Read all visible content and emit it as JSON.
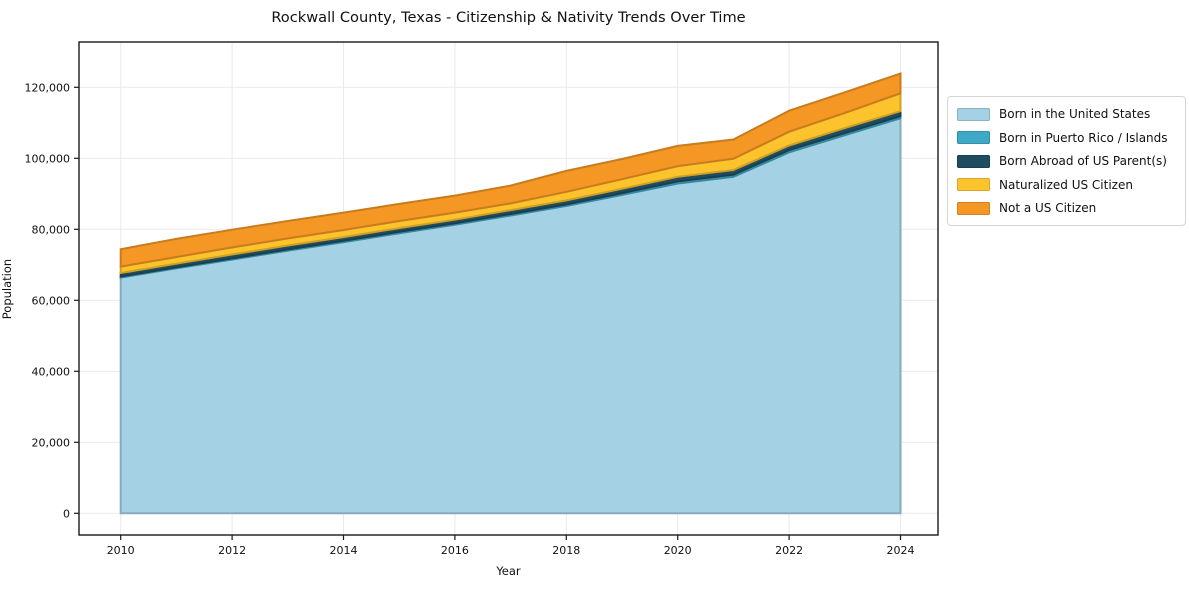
{
  "title": "Rockwall County, Texas - Citizenship & Nativity Trends Over Time",
  "chart_data": {
    "type": "area",
    "stacked": true,
    "title": "Rockwall County, Texas - Citizenship & Nativity Trends Over Time",
    "xlabel": "Year",
    "ylabel": "Population",
    "grid": true,
    "legend_position": "right of plot",
    "x": [
      2010,
      2011,
      2012,
      2013,
      2014,
      2015,
      2016,
      2017,
      2018,
      2019,
      2020,
      2021,
      2022,
      2023,
      2024
    ],
    "x_tick_labels": [
      "2010",
      "2012",
      "2014",
      "2016",
      "2018",
      "2020",
      "2022",
      "2024"
    ],
    "x_ticks": [
      2010,
      2012,
      2014,
      2016,
      2018,
      2020,
      2022,
      2024
    ],
    "y_ticks": [
      0,
      20000,
      40000,
      60000,
      80000,
      100000,
      120000
    ],
    "y_tick_labels": [
      "0",
      "20,000",
      "40,000",
      "60,000",
      "80,000",
      "100,000",
      "120,000"
    ],
    "ylim": [
      0,
      130000
    ],
    "xlim": [
      2009.25,
      2024.67
    ],
    "series": [
      {
        "name": "Born in the United States",
        "color": "#a4d1e4",
        "values": [
          66400,
          69000,
          71500,
          74000,
          76400,
          78900,
          81300,
          83900,
          86600,
          89700,
          92900,
          94800,
          101700,
          106500,
          111300
        ]
      },
      {
        "name": "Born in Puerto Rico / Islands",
        "color": "#3fa8c6",
        "values": [
          300,
          300,
          300,
          350,
          350,
          400,
          400,
          400,
          400,
          500,
          600,
          600,
          600,
          600,
          600
        ]
      },
      {
        "name": "Born Abroad of US Parent(s)",
        "color": "#1e4d61",
        "values": [
          1000,
          1000,
          1100,
          1100,
          1050,
          1050,
          1000,
          1100,
          1150,
          1200,
          1300,
          1300,
          1300,
          1400,
          1400
        ]
      },
      {
        "name": "Naturalized US Citizen",
        "color": "#fcc32d",
        "values": [
          1800,
          1900,
          2000,
          2000,
          2000,
          2000,
          2000,
          1900,
          2400,
          2700,
          3000,
          3200,
          3900,
          4300,
          5000
        ]
      },
      {
        "name": "Not a US Citizen",
        "color": "#f59724",
        "values": [
          4900,
          5100,
          5000,
          4900,
          4900,
          4800,
          4800,
          5000,
          5900,
          5700,
          5700,
          5400,
          5900,
          5800,
          5600
        ]
      }
    ]
  }
}
